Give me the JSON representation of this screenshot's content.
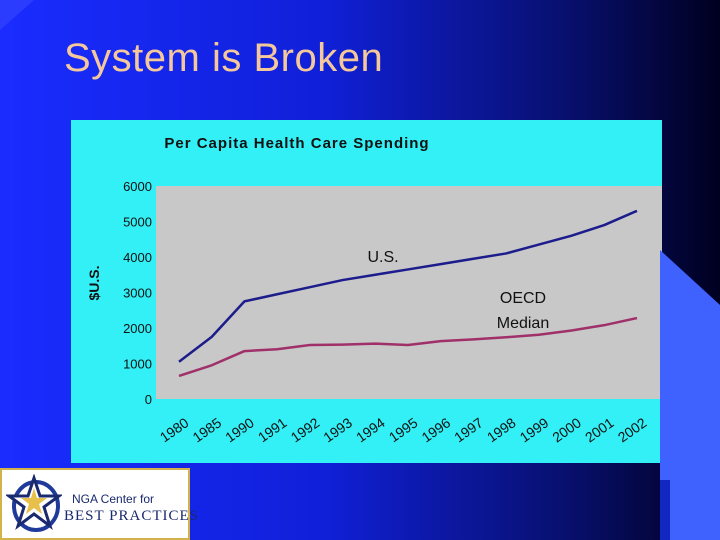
{
  "slide": {
    "title": "System is Broken"
  },
  "colors": {
    "title_text": "#f4c89a",
    "chart_background": "#33f0f6",
    "plot_area": "#c8c8c8",
    "us_line": "#1c1c8c",
    "oecd_line": "#a0306a"
  },
  "chart_data": {
    "type": "line",
    "title": "Per Capita Health Care Spending",
    "xlabel": "",
    "ylabel": "$U.S.",
    "ylim": [
      0,
      6000
    ],
    "yticks": [
      "0",
      "1000",
      "2000",
      "3000",
      "4000",
      "5000",
      "6000"
    ],
    "grid": false,
    "categories": [
      "1980",
      "1985",
      "1990",
      "1991",
      "1992",
      "1993",
      "1994",
      "1995",
      "1996",
      "1997",
      "1998",
      "1999",
      "2000",
      "2001",
      "2002"
    ],
    "series": [
      {
        "name": "U.S.",
        "values": [
          1050,
          1750,
          2750,
          2950,
          3150,
          3350,
          3500,
          3650,
          3800,
          3950,
          4100,
          4350,
          4600,
          4900,
          5300
        ]
      },
      {
        "name": "OECD Median",
        "values": [
          650,
          950,
          1350,
          1400,
          1520,
          1530,
          1560,
          1520,
          1630,
          1680,
          1740,
          1810,
          1930,
          2080,
          2280
        ]
      }
    ],
    "annotations": [
      {
        "text": "U.S.",
        "series": "U.S."
      },
      {
        "text": "OECD",
        "series": "OECD Median"
      },
      {
        "text": "Median",
        "series": "OECD Median"
      }
    ]
  },
  "logo": {
    "line1": "NGA Center for",
    "line2": "BEST PRACTICES"
  }
}
